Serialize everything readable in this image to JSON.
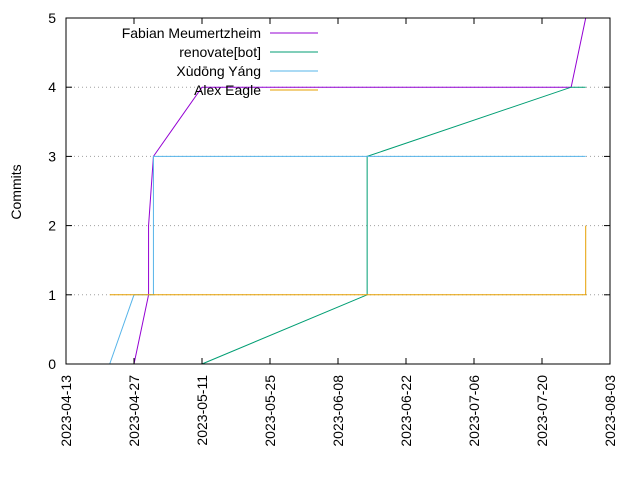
{
  "chart_data": {
    "type": "line",
    "step": true,
    "title": "",
    "xlabel": "",
    "ylabel": "Commits",
    "x_ticks": [
      "2023-04-13",
      "2023-04-27",
      "2023-05-11",
      "2023-05-25",
      "2023-06-08",
      "2023-06-22",
      "2023-07-06",
      "2023-07-20",
      "2023-08-03"
    ],
    "xlim": [
      "2023-04-13",
      "2023-08-03"
    ],
    "y_ticks": [
      "0",
      "1",
      "2",
      "3",
      "4",
      "5"
    ],
    "ylim": [
      0,
      5
    ],
    "grid": "horizontal dotted",
    "legend_position": "top-left",
    "series": [
      {
        "name": "Fabian Meumertzheim",
        "color": "#9400d3",
        "points": [
          [
            "2023-04-27",
            0
          ],
          [
            "2023-04-30",
            1
          ],
          [
            "2023-04-30",
            2
          ],
          [
            "2023-05-01",
            3
          ],
          [
            "2023-05-11",
            4
          ],
          [
            "2023-07-26",
            4
          ],
          [
            "2023-07-29",
            5
          ]
        ]
      },
      {
        "name": "renovate[bot]",
        "color": "#009e73",
        "points": [
          [
            "2023-05-11",
            0
          ],
          [
            "2023-06-14",
            1
          ],
          [
            "2023-06-14",
            3
          ],
          [
            "2023-07-26",
            4
          ],
          [
            "2023-07-29",
            4
          ]
        ]
      },
      {
        "name": "Xùdōng Yáng",
        "color": "#56b4e9",
        "points": [
          [
            "2023-04-22",
            0
          ],
          [
            "2023-04-27",
            1
          ],
          [
            "2023-05-01",
            1
          ],
          [
            "2023-05-01",
            3
          ],
          [
            "2023-07-29",
            3
          ]
        ]
      },
      {
        "name": "Alex Eagle",
        "color": "#e69f00",
        "points": [
          [
            "2023-04-22",
            1
          ],
          [
            "2023-07-29",
            1
          ],
          [
            "2023-07-29",
            2
          ]
        ]
      }
    ]
  }
}
